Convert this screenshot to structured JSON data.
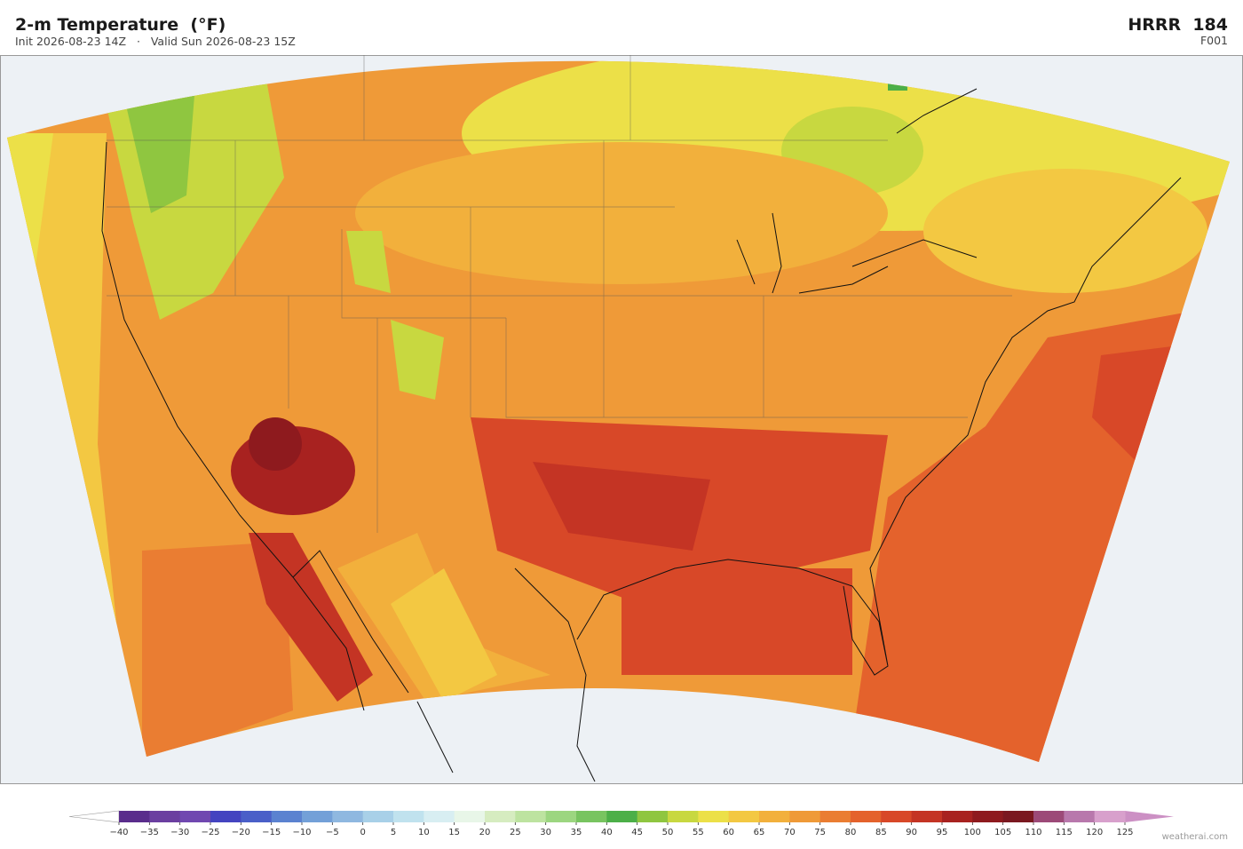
{
  "header": {
    "title": "2-m Temperature  (°F)",
    "subtitle": "Init 2026-08-23 14Z   ·   Valid Sun 2026-08-23 15Z",
    "model": "HRRR  184",
    "forecast_hour": "F001"
  },
  "colorbar": {
    "ticks": [
      {
        "value": -40,
        "label": "−40"
      },
      {
        "value": -35,
        "label": "−35"
      },
      {
        "value": -30,
        "label": "−30"
      },
      {
        "value": -25,
        "label": "−25"
      },
      {
        "value": -20,
        "label": "−20"
      },
      {
        "value": -15,
        "label": "−15"
      },
      {
        "value": -10,
        "label": "−10"
      },
      {
        "value": -5,
        "label": "−5"
      },
      0,
      5,
      10,
      15,
      20,
      25,
      30,
      35,
      40,
      45,
      50,
      55,
      60,
      65,
      70,
      75,
      80,
      85,
      90,
      95,
      100,
      105,
      110,
      115,
      120,
      125
    ],
    "colors": [
      "#5a2d8c",
      "#6b3fa0",
      "#7048b0",
      "#4444c0",
      "#4a5fc8",
      "#5b82d0",
      "#73a0d8",
      "#8fb8e0",
      "#a8d0e8",
      "#c0e2ee",
      "#d8eef2",
      "#e8f6e8",
      "#d6ecc0",
      "#bde3a0",
      "#9cd680",
      "#78c460",
      "#4caf48",
      "#8fc640",
      "#c8d840",
      "#ece048",
      "#f3c842",
      "#f2b03c",
      "#ef9a38",
      "#ea7d32",
      "#e4622c",
      "#d84828",
      "#c43424",
      "#a82220",
      "#8e1a1e",
      "#7a1820",
      "#9c4a78",
      "#b878ac",
      "#d8a0cc"
    ],
    "under_color": "#ffffff",
    "over_color": "#cc90c4"
  },
  "footer": {
    "credit": "weatherai.com"
  }
}
